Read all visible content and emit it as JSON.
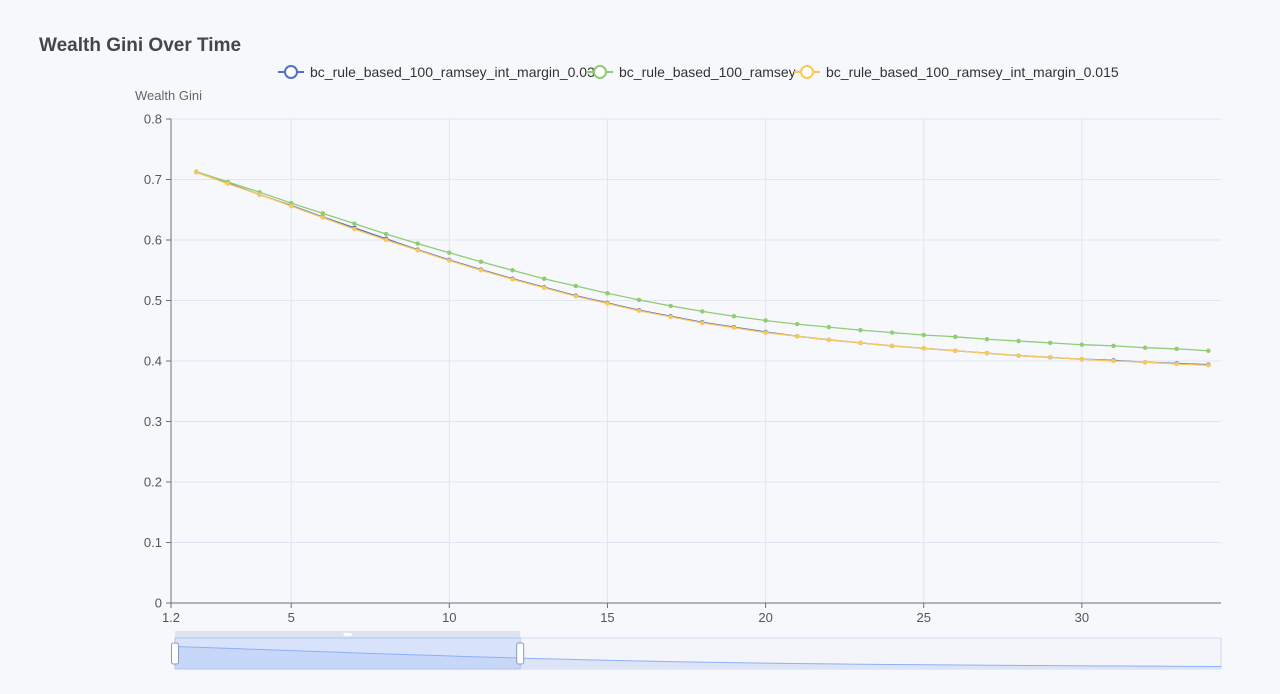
{
  "title": "Wealth Gini Over Time",
  "legend": [
    {
      "name": "bc_rule_based_100_ramsey_int_margin_0.03",
      "color": "#5470c6"
    },
    {
      "name": "bc_rule_based_100_ramsey",
      "color": "#91cc75"
    },
    {
      "name": "bc_rule_based_100_ramsey_int_margin_0.015",
      "color": "#fac858"
    }
  ],
  "chart_data": {
    "type": "line",
    "title": "Wealth Gini Over Time",
    "xlabel": "",
    "ylabel": "Wealth Gini",
    "xlim": [
      1.2,
      34.4
    ],
    "ylim": [
      0,
      0.8
    ],
    "x_ticks": [
      "1.2",
      "5",
      "10",
      "15",
      "20",
      "25",
      "30"
    ],
    "x_tick_values": [
      1.2,
      5,
      10,
      15,
      20,
      25,
      30
    ],
    "y_ticks": [
      "0",
      "0.1",
      "0.2",
      "0.3",
      "0.4",
      "0.5",
      "0.6",
      "0.7",
      "0.8"
    ],
    "y_tick_values": [
      0,
      0.1,
      0.2,
      0.3,
      0.4,
      0.5,
      0.6,
      0.7,
      0.8
    ],
    "grid": true,
    "legend_position": "top-center",
    "x": [
      2,
      3,
      4,
      5,
      6,
      7,
      8,
      9,
      10,
      11,
      12,
      13,
      14,
      15,
      16,
      17,
      18,
      19,
      20,
      21,
      22,
      23,
      24,
      25,
      26,
      27,
      28,
      29,
      30,
      31,
      32,
      33,
      34
    ],
    "series": [
      {
        "name": "bc_rule_based_100_ramsey_int_margin_0.03",
        "color": "#5470c6",
        "values": [
          0.712,
          0.694,
          0.675,
          0.657,
          0.638,
          0.62,
          0.602,
          0.584,
          0.567,
          0.551,
          0.536,
          0.522,
          0.508,
          0.496,
          0.484,
          0.474,
          0.464,
          0.456,
          0.448,
          0.441,
          0.435,
          0.43,
          0.425,
          0.421,
          0.417,
          0.413,
          0.409,
          0.406,
          0.403,
          0.401,
          0.398,
          0.396,
          0.394
        ]
      },
      {
        "name": "bc_rule_based_100_ramsey",
        "color": "#91cc75",
        "values": [
          0.713,
          0.696,
          0.679,
          0.661,
          0.644,
          0.627,
          0.61,
          0.594,
          0.579,
          0.564,
          0.55,
          0.536,
          0.524,
          0.512,
          0.501,
          0.491,
          0.482,
          0.474,
          0.467,
          0.461,
          0.456,
          0.451,
          0.447,
          0.443,
          0.44,
          0.436,
          0.433,
          0.43,
          0.427,
          0.425,
          0.422,
          0.42,
          0.417
        ]
      },
      {
        "name": "bc_rule_based_100_ramsey_int_margin_0.015",
        "color": "#fac858",
        "values": [
          0.712,
          0.693,
          0.675,
          0.656,
          0.637,
          0.618,
          0.6,
          0.583,
          0.566,
          0.55,
          0.535,
          0.521,
          0.507,
          0.495,
          0.483,
          0.473,
          0.463,
          0.455,
          0.447,
          0.441,
          0.435,
          0.43,
          0.425,
          0.421,
          0.417,
          0.413,
          0.409,
          0.406,
          0.403,
          0.4,
          0.398,
          0.395,
          0.393
        ]
      }
    ],
    "data_zoom": {
      "start": 0,
      "end": 0.33
    }
  }
}
